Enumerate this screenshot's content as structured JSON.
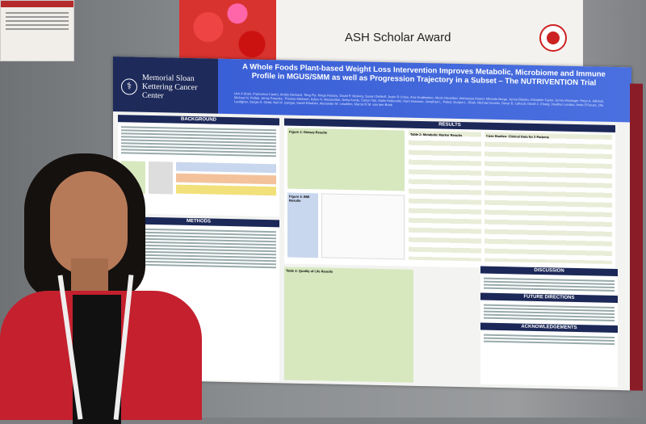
{
  "award_banner": {
    "title": "ASH Scholar Award"
  },
  "poster": {
    "institution": "Memorial Sloan Kettering Cancer Center",
    "title": "A Whole Foods Plant-based Weight Loss Intervention Improves Metabolic, Microbiome and Immune Profile in MGUS/SMM as well as Progression Trajectory in a Subset – The NUTRIVENTION Trial",
    "authors": "Urvi A Shah, Francesca Castro, Andriy Derkach, Tiing Fei, Kinga Hosszu, David P. McAvoy, Susan DeWolf, Justin R Cross, Ana Gradissimo, Alexis Nearnber, Aishwarya Anand, Miranda Burge, Jenna Blaslov, Elizabeth Taylor, Jenna Woolager, Peter A. Adintori, Michael N. Pollak, Jenny Paredes, Thomas Atkinson, Kylee H. Maclachlan, Neha Korde, Carlyn Tan, Malin Hultcrantz, Hani Hassoun, Jonathan L. Peled, Gunjan L. Shah, Michael Scordo, Oscar B. Lahoud, David J. Chung, Heather Landau, Anita D'Souza, Ola Landgren, Sergio A. Giralt, Neil M. Iyengar, Sarah Ebrahim, Alexander M. Lesokhin, Marcel R.M. van den Brink",
    "sections": {
      "background": "BACKGROUND",
      "methods": "METHODS",
      "results": "RESULTS",
      "discussion": "DISCUSSION",
      "future": "FUTURE DIRECTIONS",
      "ack": "ACKNOWLEDGEMENTS"
    },
    "figures": {
      "fig2": "Figure 2: Dietary Results",
      "fig3": "Figure 3: BMI Results",
      "table2": "Table 2: Metabolic Marker Results",
      "table3": "Table 3: Quality of Life Results",
      "case": "Case Studies: Clinical Data for 2 Patients"
    }
  }
}
